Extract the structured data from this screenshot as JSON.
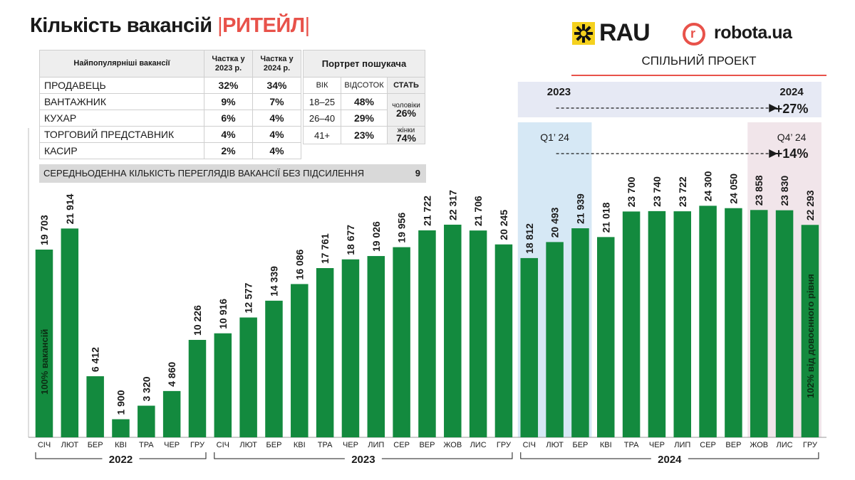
{
  "header": {
    "title_main": "Кількість вакансій",
    "title_sep": "|",
    "title_accent": "РИТЕЙЛ",
    "rau_logo": "RAU",
    "robota_logo": "robota.ua",
    "joint_project": "СПІЛЬНИЙ ПРОЕКТ"
  },
  "popular": {
    "header_name": "Найпопулярніші вакансії",
    "header_2023": "Частка у 2023 р.",
    "header_2024": "Частка у 2024 р.",
    "rows": [
      {
        "name": "ПРОДАВЕЦЬ",
        "y2023": "32%",
        "y2024": "34%"
      },
      {
        "name": "ВАНТАЖНИК",
        "y2023": "9%",
        "y2024": "7%"
      },
      {
        "name": "КУХАР",
        "y2023": "6%",
        "y2024": "4%"
      },
      {
        "name": "ТОРГОВИЙ ПРЕДСТАВНИК",
        "y2023": "4%",
        "y2024": "4%"
      },
      {
        "name": "КАСИР",
        "y2023": "2%",
        "y2024": "4%"
      }
    ]
  },
  "portrait": {
    "title": "Портрет пошукача",
    "col_age": "ВІК",
    "col_percent": "ВІДСОТОК",
    "col_gender": "СТАТЬ",
    "rows": [
      {
        "age": "18–25",
        "percent": "48%"
      },
      {
        "age": "26–40",
        "percent": "29%"
      },
      {
        "age": "41+",
        "percent": "23%"
      }
    ],
    "male_label": "чоловіки",
    "male_value": "26%",
    "female_label": "жінки",
    "female_value": "74%"
  },
  "views": {
    "label": "СЕРЕДНЬОДЕННА КІЛЬКІСТЬ ПЕРЕГЛЯДІВ ВАКАНСІЇ БЕЗ ПІДСИЛЕННЯ",
    "value": "9"
  },
  "colors": {
    "bar": "#138a3e",
    "accent": "#e8524a",
    "rau_yellow": "#f5d11e",
    "band_2023_2024": "#e6e9f4",
    "band_q1": "#d6e8f5",
    "band_q4": "#f1e5ea"
  },
  "chart_data": {
    "type": "bar",
    "categories": [
      "СІЧ",
      "ЛЮТ",
      "БЕР",
      "КВІ",
      "ТРА",
      "ЧЕР",
      "ГРУ",
      "СІЧ",
      "ЛЮТ",
      "БЕР",
      "КВІ",
      "ТРА",
      "ЧЕР",
      "ЛИП",
      "СЕР",
      "ВЕР",
      "ЖОВ",
      "ЛИС",
      "ГРУ",
      "СІЧ",
      "ЛЮТ",
      "БЕР",
      "КВІ",
      "ТРА",
      "ЧЕР",
      "ЛИП",
      "СЕР",
      "ВЕР",
      "ЖОВ",
      "ЛИС",
      "ГРУ"
    ],
    "values": [
      19703,
      21914,
      6412,
      1900,
      3320,
      4860,
      10226,
      10916,
      12577,
      14339,
      16086,
      17761,
      18677,
      19026,
      19956,
      21722,
      22317,
      21706,
      20245,
      18812,
      20493,
      21939,
      21018,
      23700,
      23740,
      23722,
      24300,
      24050,
      23858,
      23830,
      22293
    ],
    "value_labels": [
      "19 703",
      "21 914",
      "6 412",
      "1 900",
      "3 320",
      "4 860",
      "10 226",
      "10 916",
      "12 577",
      "14 339",
      "16 086",
      "17 761",
      "18 677",
      "19 026",
      "19 956",
      "21 722",
      "22 317",
      "21 706",
      "20 245",
      "18 812",
      "20 493",
      "21 939",
      "21 018",
      "23 700",
      "23 740",
      "23 722",
      "24 300",
      "24 050",
      "23 858",
      "23 830",
      "22 293"
    ],
    "years": [
      {
        "label": "2022",
        "start": 0,
        "end": 6
      },
      {
        "label": "2023",
        "start": 7,
        "end": 18
      },
      {
        "label": "2024",
        "start": 19,
        "end": 30
      }
    ],
    "ylim": [
      0,
      25000
    ],
    "first_bar_note": "100% вакансій",
    "last_bar_note": "102% від довоєнного рівня",
    "comparisons": [
      {
        "from_label": "2023",
        "to_label": "2024",
        "change": "+27%"
      },
      {
        "from_label": "Q1’ 24",
        "to_label": "Q4’ 24",
        "change": "+14%"
      }
    ]
  }
}
